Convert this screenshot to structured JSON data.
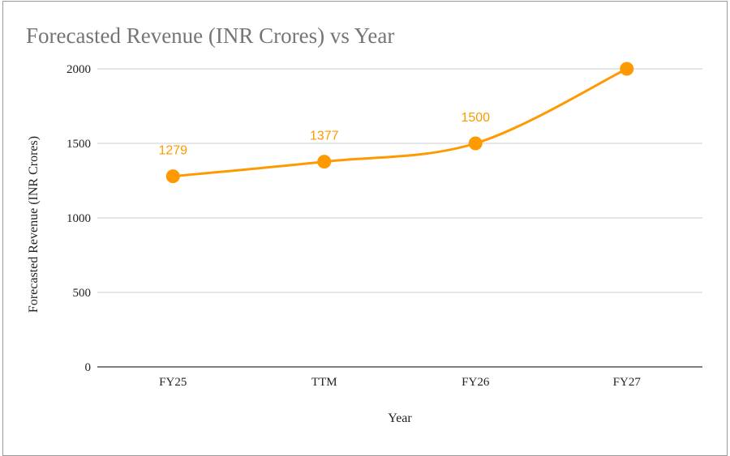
{
  "chart_data": {
    "type": "line",
    "title": "Forecasted Revenue (INR Crores) vs Year",
    "xlabel": "Year",
    "ylabel": "Forecasted Revenue (INR Crores)",
    "categories": [
      "FY25",
      "TTM",
      "FY26",
      "FY27"
    ],
    "values": [
      1279,
      1377,
      1500,
      2000
    ],
    "data_labels": [
      "1279",
      "1377",
      "1500",
      ""
    ],
    "ylim": [
      0,
      2000
    ],
    "yticks": [
      0,
      500,
      1000,
      1500,
      2000
    ],
    "grid": true,
    "smooth": true,
    "legend": "none",
    "color": "#FF9900"
  }
}
